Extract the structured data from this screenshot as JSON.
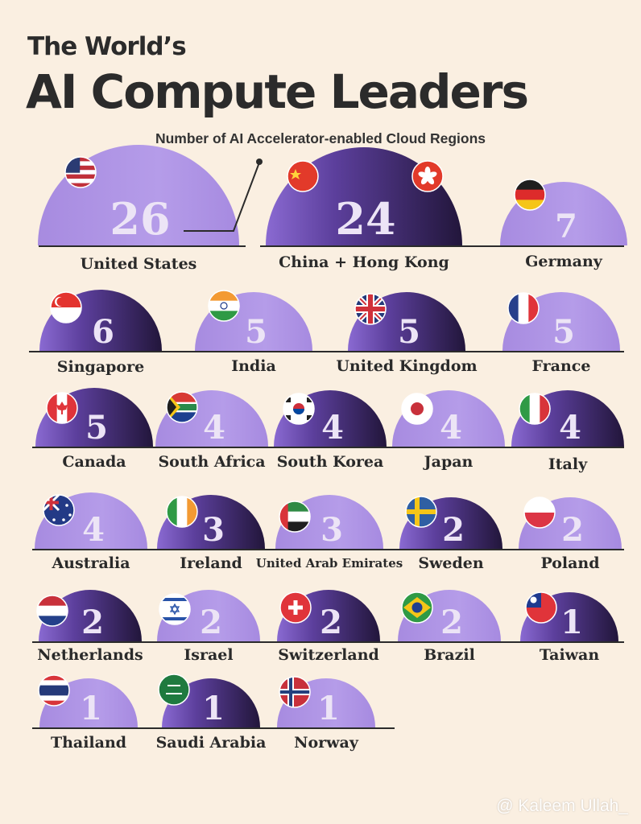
{
  "header": {
    "title_line1": "The World’s",
    "title_line2": "AI Compute Leaders",
    "subtitle": "Number of AI Accelerator-enabled Cloud Regions"
  },
  "watermark": "@ Kaleem Ullah_",
  "colors": {
    "background": "#faefe1",
    "light_purple": "#a98fe3",
    "dark_purple": "#2f1f4c",
    "mid_purple": "#7a5bc4",
    "number_light": "#e6dcf5",
    "text": "#2a2a2a"
  },
  "chart_data": {
    "type": "bar",
    "title": "The World’s AI Compute Leaders",
    "subtitle": "Number of AI Accelerator-enabled Cloud Regions",
    "categories": [
      "United States",
      "China + Hong Kong",
      "Germany",
      "Singapore",
      "India",
      "United Kingdom",
      "France",
      "Canada",
      "South Africa",
      "South Korea",
      "Japan",
      "Italy",
      "Australia",
      "Ireland",
      "United Arab Emirates",
      "Sweden",
      "Poland",
      "Netherlands",
      "Israel",
      "Switzerland",
      "Brazil",
      "Taiwan",
      "Thailand",
      "Saudi Arabia",
      "Norway"
    ],
    "values": [
      26,
      24,
      7,
      6,
      5,
      5,
      5,
      5,
      4,
      4,
      4,
      4,
      4,
      3,
      3,
      2,
      2,
      2,
      2,
      2,
      2,
      1,
      1,
      1,
      1
    ],
    "styles": [
      "light",
      "dark",
      "light",
      "dark",
      "light",
      "dark",
      "light",
      "dark",
      "light",
      "dark",
      "light",
      "dark",
      "light",
      "dark",
      "light",
      "dark",
      "light",
      "dark",
      "light",
      "dark",
      "light",
      "dark",
      "light",
      "dark",
      "light"
    ],
    "flags": [
      [
        "us-flag-icon"
      ],
      [
        "china-flag-icon",
        "hong-kong-flag-icon"
      ],
      [
        "germany-flag-icon"
      ],
      [
        "singapore-flag-icon"
      ],
      [
        "india-flag-icon"
      ],
      [
        "uk-flag-icon"
      ],
      [
        "france-flag-icon"
      ],
      [
        "canada-flag-icon"
      ],
      [
        "south-africa-flag-icon"
      ],
      [
        "south-korea-flag-icon"
      ],
      [
        "japan-flag-icon"
      ],
      [
        "italy-flag-icon"
      ],
      [
        "australia-flag-icon"
      ],
      [
        "ireland-flag-icon"
      ],
      [
        "uae-flag-icon"
      ],
      [
        "sweden-flag-icon"
      ],
      [
        "poland-flag-icon"
      ],
      [
        "netherlands-flag-icon"
      ],
      [
        "israel-flag-icon"
      ],
      [
        "switzerland-flag-icon"
      ],
      [
        "brazil-flag-icon"
      ],
      [
        "taiwan-flag-icon"
      ],
      [
        "thailand-flag-icon"
      ],
      [
        "saudi-arabia-flag-icon"
      ],
      [
        "norway-flag-icon"
      ]
    ]
  }
}
